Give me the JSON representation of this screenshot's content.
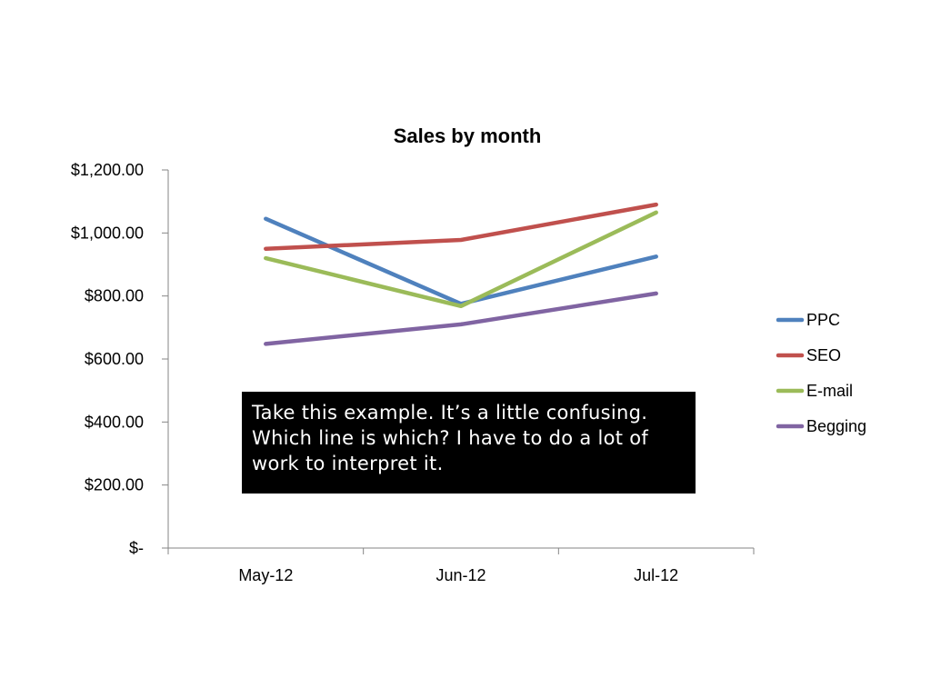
{
  "chart_data": {
    "type": "line",
    "title": "Sales by month",
    "xlabel": "",
    "ylabel": "",
    "categories": [
      "May-12",
      "Jun-12",
      "Jul-12"
    ],
    "y_ticks": [
      0,
      200,
      400,
      600,
      800,
      1000,
      1200
    ],
    "y_tick_labels": [
      "$-",
      "$200.00",
      "$400.00",
      "$600.00",
      "$800.00",
      "$1,000.00",
      "$1,200.00"
    ],
    "ylim": [
      0,
      1200
    ],
    "grid": false,
    "legend_position": "right",
    "series": [
      {
        "name": "PPC",
        "color": "#4f81bd",
        "values": [
          1045,
          775,
          925
        ]
      },
      {
        "name": "SEO",
        "color": "#c0504d",
        "values": [
          950,
          978,
          1090
        ]
      },
      {
        "name": "E-mail",
        "color": "#9bbb59",
        "values": [
          920,
          768,
          1065
        ]
      },
      {
        "name": "Begging",
        "color": "#8064a2",
        "values": [
          648,
          710,
          808
        ]
      }
    ]
  },
  "callout": {
    "text": "Take this example. It’s a little confusing. Which line is which? I have to do a lot of work to interpret it."
  }
}
